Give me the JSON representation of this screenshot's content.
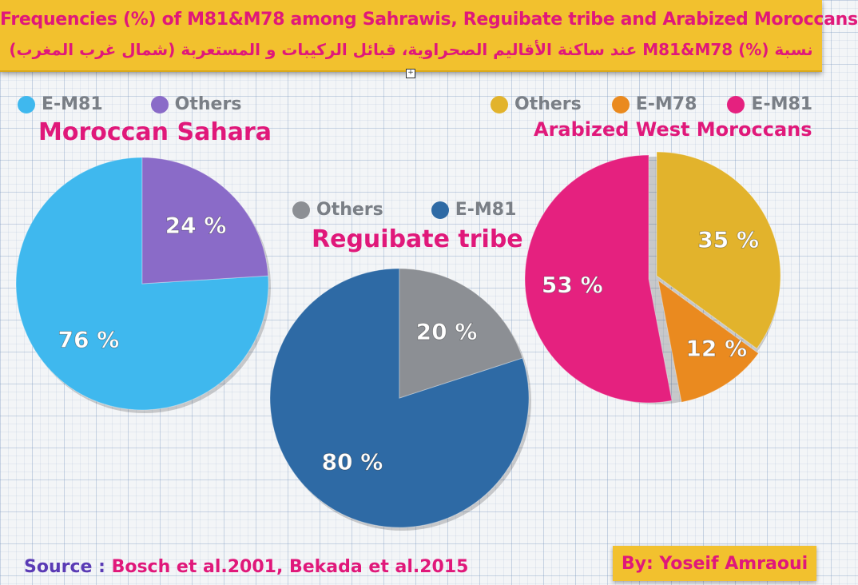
{
  "header": {
    "title_en": "Frequencies (%) of M81&M78 among Sahrawis, Reguibate tribe and Arabized Moroccans",
    "title_ar": "نسبة (%) M81&M78 عند ساكنة الأقاليم الصحراوية، قبائل الركيبات و المستعربة (شمال غرب المغرب)"
  },
  "chart_data": [
    {
      "type": "pie",
      "title": "Moroccan Sahara",
      "legend": [
        "E-M81",
        "Others"
      ],
      "categories": [
        "E-M81",
        "Others"
      ],
      "values": [
        76,
        24
      ],
      "labels": [
        "76 %",
        "24 %"
      ],
      "colors": [
        "#3fb8ee",
        "#8a6bc8"
      ],
      "legend_position": "top-left"
    },
    {
      "type": "pie",
      "title": "Reguibate tribe",
      "legend": [
        "Others",
        "E-M81"
      ],
      "categories": [
        "E-M81",
        "Others"
      ],
      "values": [
        80,
        20
      ],
      "labels": [
        "80 %",
        "20 %"
      ],
      "colors": [
        "#2e6aa5",
        "#8c8f94"
      ],
      "legend_position": "top"
    },
    {
      "type": "pie",
      "title": "Arabized West Moroccans",
      "legend": [
        "Others",
        "E-M78",
        "E-M81"
      ],
      "categories": [
        "Others",
        "E-M78",
        "E-M81"
      ],
      "values": [
        35,
        12,
        53
      ],
      "labels": [
        "35 %",
        "12 %",
        "53 %"
      ],
      "colors": [
        "#e2b32c",
        "#ea8a1f",
        "#e5217f"
      ],
      "legend_position": "top-right"
    }
  ],
  "legend_colors": {
    "E-M81_sahara": "#3fb8ee",
    "Others_sahara": "#8a6bc8",
    "Others_reguibate": "#8c8f94",
    "E-M81_reguibate": "#2e6aa5",
    "Others_west": "#e2b32c",
    "E-M78_west": "#ea8a1f",
    "E-M81_west": "#e5217f"
  },
  "footer": {
    "source_label": "Source :",
    "source_text": "Bosch et al.2001, Bekada et al.2015",
    "author": "By: Yoseif Amraoui"
  }
}
